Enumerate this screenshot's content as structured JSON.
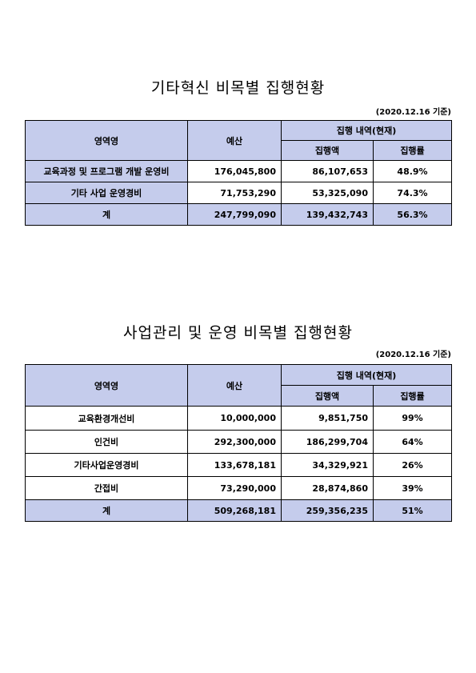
{
  "t1": {
    "title": "기타혁신 비목별 집행현황",
    "date": "(2020.12.16 기준)",
    "h_area": "영역영",
    "h_budget": "예산",
    "h_exec": "집행 내역(현재)",
    "h_amount": "집행액",
    "h_rate": "집행률",
    "rows": [
      {
        "name": "교육과정 및 프로그램 개발 운영비",
        "budget": "176,045,800",
        "amount": "86,107,653",
        "rate": "48.9%"
      },
      {
        "name": "기타 사업 운영경비",
        "budget": "71,753,290",
        "amount": "53,325,090",
        "rate": "74.3%"
      }
    ],
    "total": {
      "name": "계",
      "budget": "247,799,090",
      "amount": "139,432,743",
      "rate": "56.3%"
    }
  },
  "t2": {
    "title": "사업관리 및 운영 비목별 집행현황",
    "date": "(2020.12.16 기준)",
    "h_area": "영역영",
    "h_budget": "예산",
    "h_exec": "집행 내역(현재)",
    "h_amount": "집행액",
    "h_rate": "집행률",
    "rows": [
      {
        "name": "교육환경개선비",
        "budget": "10,000,000",
        "amount": "9,851,750",
        "rate": "99%"
      },
      {
        "name": "인건비",
        "budget": "292,300,000",
        "amount": "186,299,704",
        "rate": "64%"
      },
      {
        "name": "기타사업운영경비",
        "budget": "133,678,181",
        "amount": "34,329,921",
        "rate": "26%"
      },
      {
        "name": "간접비",
        "budget": "73,290,000",
        "amount": "28,874,860",
        "rate": "39%"
      }
    ],
    "total": {
      "name": "계",
      "budget": "509,268,181",
      "amount": "259,356,235",
      "rate": "51%"
    }
  }
}
